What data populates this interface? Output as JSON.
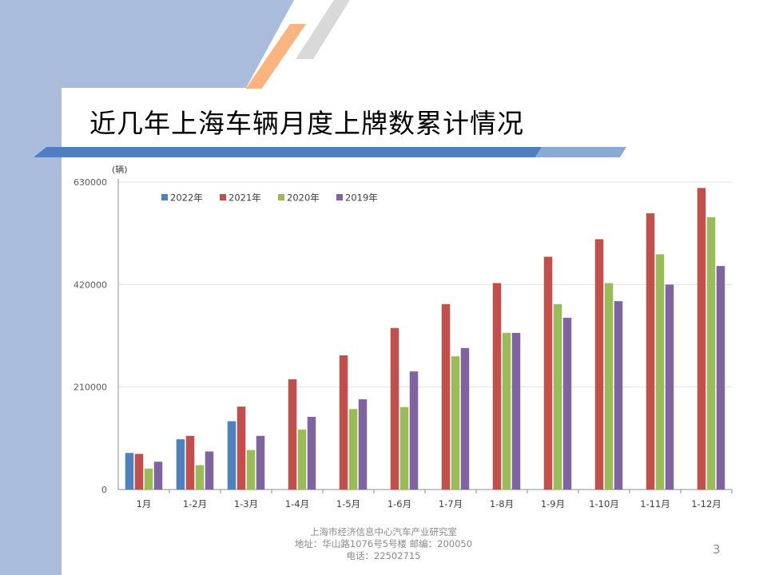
{
  "slide": {
    "title": "近几年上海车辆月度上牌数累计情况",
    "page_number": "3",
    "footer": {
      "line1": "上海市经济信息中心汽车产业研究室",
      "line2": "地址：华山路1076号5号楼    邮编：200050",
      "line3": "电话：22502715"
    }
  },
  "colors": {
    "left_band": "#a9bcdc",
    "accent_orange": "#f9b47f",
    "accent_gray": "#d9d9d9",
    "title_bar": "#4f7fc0",
    "title_bar_light": "#8aaad6"
  },
  "chart_data": {
    "type": "bar",
    "unit_label": "(辆)",
    "categories": [
      "1月",
      "1-2月",
      "1-3月",
      "1-4月",
      "1-5月",
      "1-6月",
      "1-7月",
      "1-8月",
      "1-9月",
      "1-10月",
      "1-11月",
      "1-12月"
    ],
    "ylim": [
      0,
      630000
    ],
    "yticks": [
      0,
      210000,
      420000,
      630000
    ],
    "ytick_labels": [
      "0",
      "210000",
      "420000",
      "630000"
    ],
    "grid": true,
    "legend_position": "top-left",
    "series": [
      {
        "name": "2022年",
        "color": "#4f81bd",
        "values": [
          75000,
          103000,
          140000,
          null,
          null,
          null,
          null,
          null,
          null,
          null,
          null,
          null
        ]
      },
      {
        "name": "2021年",
        "color": "#c0504d",
        "values": [
          73000,
          110000,
          170000,
          226000,
          275000,
          331000,
          380000,
          423000,
          477000,
          513000,
          566000,
          618000
        ]
      },
      {
        "name": "2020年",
        "color": "#9bbb59",
        "values": [
          43000,
          50000,
          81000,
          123000,
          165000,
          169000,
          273000,
          321000,
          380000,
          423000,
          482000,
          558000
        ]
      },
      {
        "name": "2019年",
        "color": "#8064a2",
        "values": [
          57000,
          78000,
          110000,
          149000,
          185000,
          242000,
          290000,
          321000,
          352000,
          386000,
          420000,
          458000
        ]
      }
    ]
  }
}
